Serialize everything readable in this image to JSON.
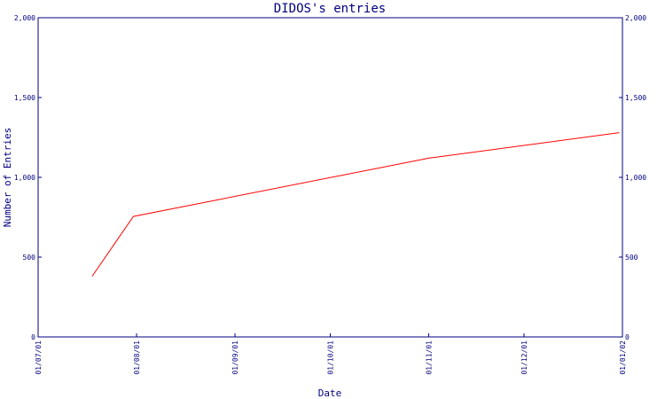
{
  "chart_data": {
    "type": "line",
    "title": "DIDOS's entries",
    "xlabel": "Date",
    "ylabel": "Number of Entries",
    "x_ticks": [
      "01/07/01",
      "01/08/01",
      "01/09/01",
      "01/10/01",
      "01/11/01",
      "01/12/01",
      "01/01/02"
    ],
    "y_ticks": [
      "0",
      "500",
      "1,000",
      "1,500",
      "2,000"
    ],
    "y_tick_values": [
      0,
      500,
      1000,
      1500,
      2000
    ],
    "ylim": [
      0,
      2000
    ],
    "xlim": [
      "2001-07-01",
      "2002-01-01"
    ],
    "series": [
      {
        "color": "#ff0000",
        "x": [
          "2001-07-18",
          "2001-07-31",
          "2001-11-01",
          "2001-12-31"
        ],
        "y": [
          380,
          755,
          1120,
          1280
        ]
      }
    ],
    "grid": false,
    "legend": "none",
    "right_axis": true
  }
}
